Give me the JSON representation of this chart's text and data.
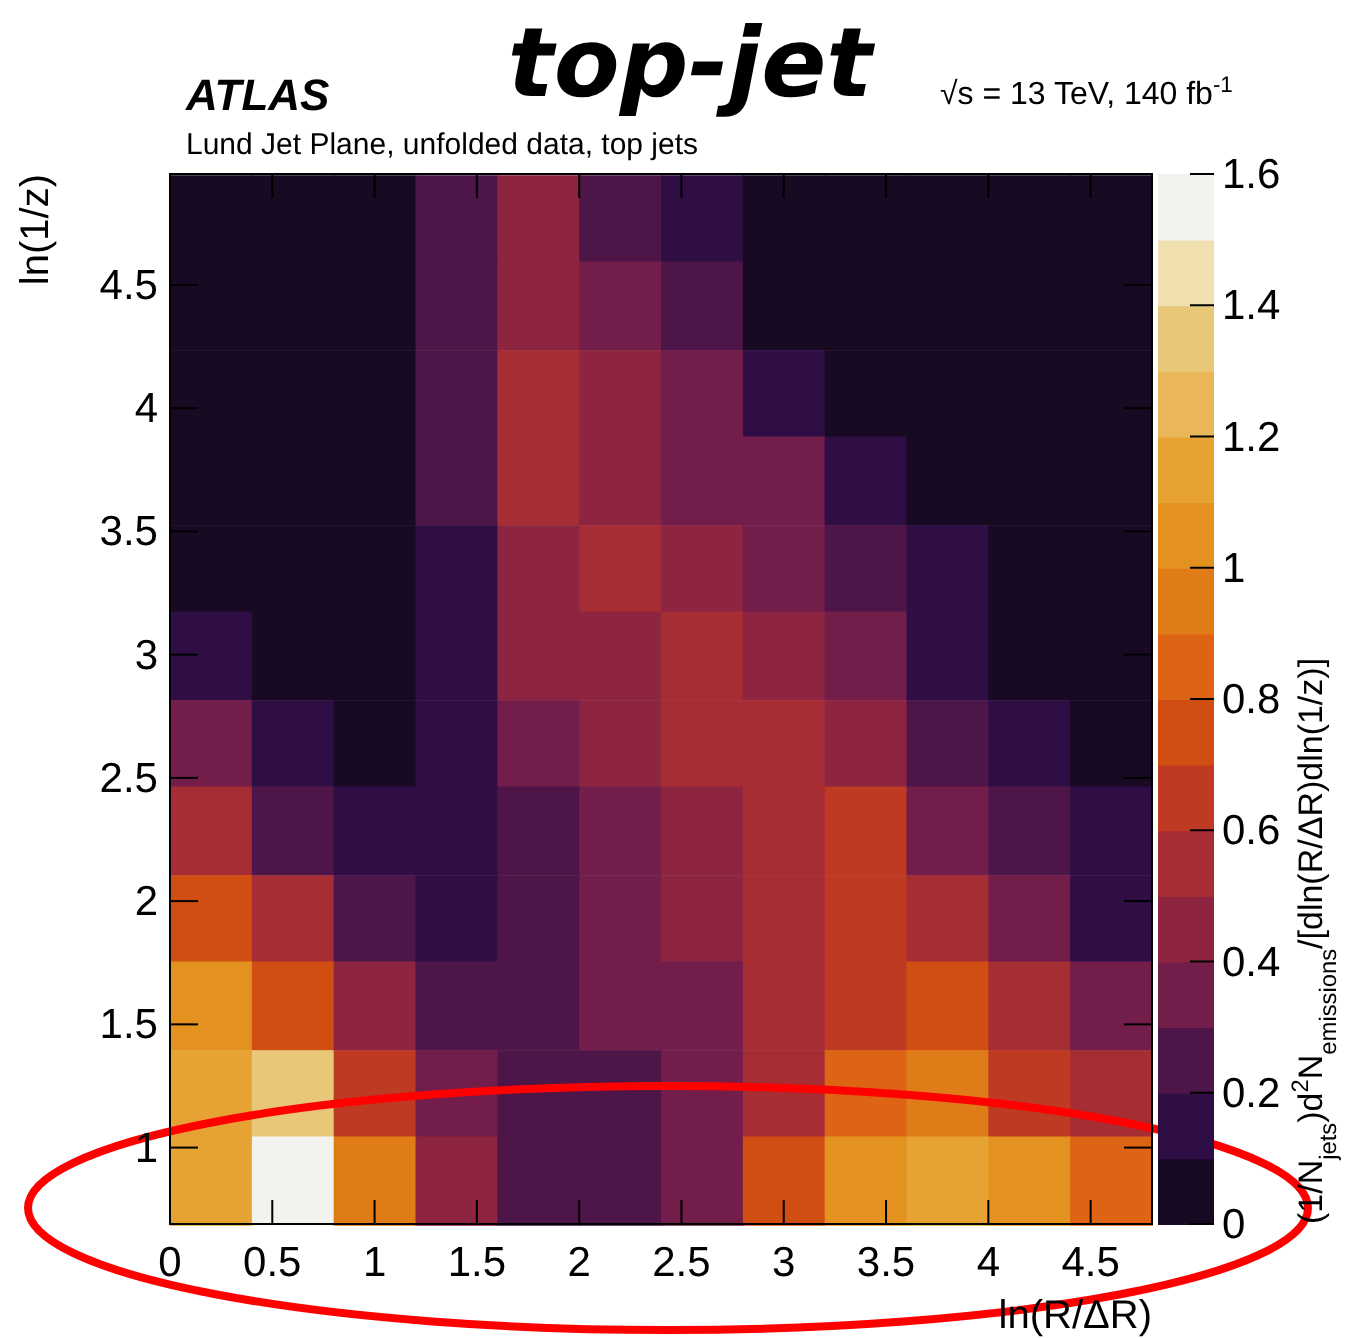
{
  "chart_data": {
    "type": "heatmap",
    "title": "top-jet",
    "subtitle": "Lund Jet Plane, unfolded data, top jets",
    "annotations": [
      "ATLAS",
      "√s = 13 TeV, 140 fb$^{-1}$"
    ],
    "xlabel": "ln(R/ΔR)",
    "ylabel": "ln(1/z)",
    "clabel": "(1/N$_{jets}$)d$^{2}$N$_{emissions}$/[dln(R/ΔR)dln(1/z)]",
    "x": [
      0.2,
      0.6,
      1,
      1.4,
      1.8,
      2.2,
      2.6,
      3,
      3.4,
      3.8,
      4.2,
      4.6
    ],
    "y": [
      4.77,
      4.42,
      4.06,
      3.71,
      3.35,
      3,
      2.64,
      2.29,
      1.93,
      1.58,
      1.22,
      0.87
    ],
    "xlim": [
      0,
      4.8
    ],
    "xticks": [
      0,
      0.5,
      1,
      1.5,
      2,
      2.5,
      3,
      3.5,
      4,
      4.5
    ],
    "ylim": [
      0.69,
      4.95
    ],
    "yticks": [
      1,
      1.5,
      2,
      2.5,
      3,
      3.5,
      4,
      4.5
    ],
    "clim": [
      0,
      1.6
    ],
    "cticks": [
      0,
      0.2,
      0.4,
      0.6,
      0.8,
      1,
      1.2,
      1.4,
      1.6
    ],
    "cells": [
      [
        0.05,
        0.05,
        0.05,
        0.25,
        0.45,
        0.25,
        0.15,
        0.05,
        0.05,
        0.05,
        0.05,
        0.05
      ],
      [
        0.05,
        0.05,
        0.05,
        0.25,
        0.45,
        0.35,
        0.25,
        0.05,
        0.05,
        0.05,
        0.05,
        0.05
      ],
      [
        0.05,
        0.05,
        0.05,
        0.25,
        0.55,
        0.45,
        0.35,
        0.15,
        0.05,
        0.05,
        0.05,
        0.05
      ],
      [
        0.05,
        0.05,
        0.05,
        0.25,
        0.55,
        0.45,
        0.35,
        0.35,
        0.15,
        0.05,
        0.05,
        0.05
      ],
      [
        0.05,
        0.05,
        0.05,
        0.15,
        0.45,
        0.55,
        0.45,
        0.35,
        0.25,
        0.15,
        0.05,
        0.05
      ],
      [
        0.15,
        0.05,
        0.05,
        0.15,
        0.45,
        0.45,
        0.55,
        0.45,
        0.35,
        0.15,
        0.05,
        0.05
      ],
      [
        0.35,
        0.15,
        0.05,
        0.15,
        0.35,
        0.45,
        0.55,
        0.55,
        0.45,
        0.25,
        0.15,
        0.05
      ],
      [
        0.55,
        0.25,
        0.15,
        0.15,
        0.25,
        0.35,
        0.45,
        0.55,
        0.65,
        0.35,
        0.25,
        0.15
      ],
      [
        0.75,
        0.55,
        0.25,
        0.15,
        0.25,
        0.35,
        0.45,
        0.55,
        0.65,
        0.55,
        0.35,
        0.15
      ],
      [
        1.05,
        0.75,
        0.45,
        0.25,
        0.25,
        0.35,
        0.35,
        0.55,
        0.65,
        0.75,
        0.55,
        0.35
      ],
      [
        1.15,
        1.35,
        0.65,
        0.35,
        0.25,
        0.25,
        0.35,
        0.55,
        0.85,
        0.95,
        0.65,
        0.55
      ],
      [
        1.15,
        1.55,
        0.95,
        0.45,
        0.25,
        0.25,
        0.35,
        0.75,
        1.05,
        1.15,
        1.05,
        0.85
      ]
    ]
  }
}
